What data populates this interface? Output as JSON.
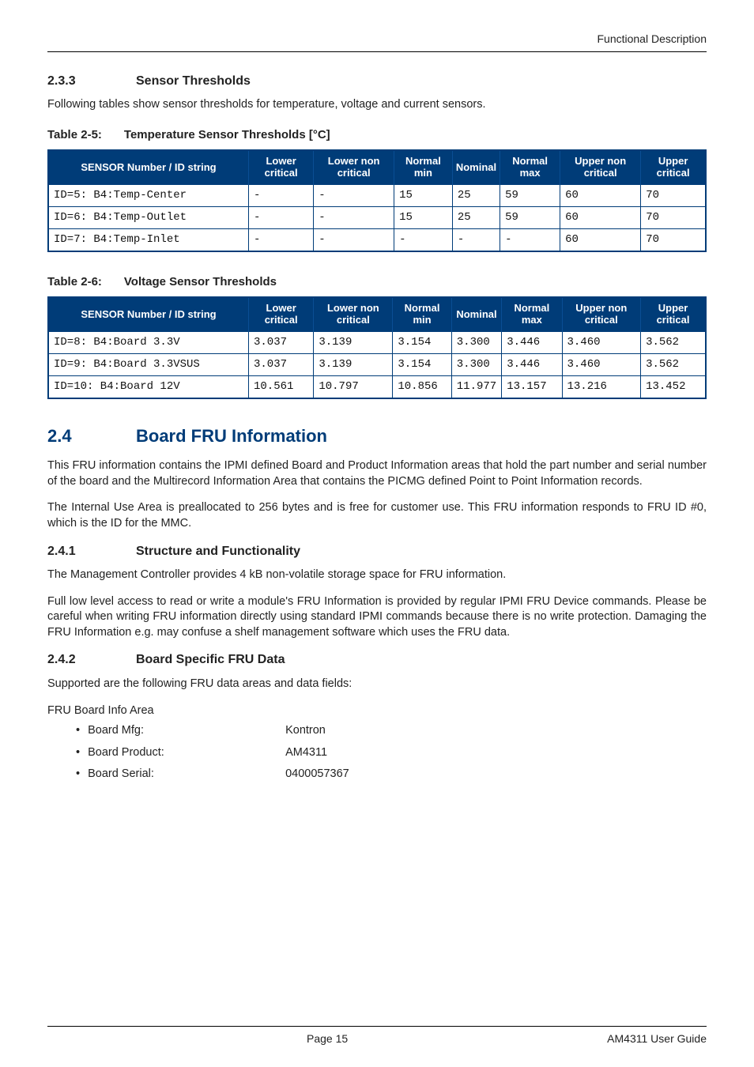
{
  "header": {
    "right": "Functional Description"
  },
  "sections": {
    "s233": {
      "num": "2.3.3",
      "title": "Sensor Thresholds"
    },
    "s233_intro": "Following tables show sensor thresholds for temperature, voltage and current sensors.",
    "tbl25_caption_num": "Table 2-5:",
    "tbl25_caption_title": "Temperature Sensor Thresholds [°C]",
    "tbl26_caption_num": "Table 2-6:",
    "tbl26_caption_title": "Voltage Sensor Thresholds",
    "s24": {
      "num": "2.4",
      "title": "Board FRU Information"
    },
    "s24_p1": "This FRU information contains the IPMI defined Board and Product Information areas that hold the part number and serial number of the board and the Multirecord Information Area that contains the PICMG defined Point to Point Information records.",
    "s24_p2": "The Internal Use Area is preallocated to 256 bytes and is free for customer use. This FRU information responds to FRU ID #0, which is the ID for the MMC.",
    "s241": {
      "num": "2.4.1",
      "title": "Structure and Functionality"
    },
    "s241_p1": "The Management Controller provides 4 kB non-volatile storage space for FRU information.",
    "s241_p2": "Full low level access to read or write a module's FRU Information is provided by regular IPMI FRU Device commands. Please be careful when writing FRU information directly using standard IPMI commands because there is no write protection. Damaging the FRU Information e.g. may confuse a shelf management software which uses the FRU data.",
    "s242": {
      "num": "2.4.2",
      "title": "Board Specific FRU Data"
    },
    "s242_p1": "Supported are the following FRU data areas and data fields:",
    "s242_p2": "FRU Board Info Area"
  },
  "table_columns": [
    "SENSOR Number / ID string",
    "Lower critical",
    "Lower non criti­cal",
    "Normal min",
    "Nominal",
    "Normal max",
    "Upper non critical",
    "Upper critical"
  ],
  "table25": {
    "rows": [
      [
        "ID=5: B4:Temp-Center",
        "-",
        "-",
        "15",
        "25",
        "59",
        "60",
        "70"
      ],
      [
        "ID=6: B4:Temp-Outlet",
        "-",
        "-",
        "15",
        "25",
        "59",
        "60",
        "70"
      ],
      [
        "ID=7: B4:Temp-Inlet",
        "-",
        "-",
        "-",
        "-",
        "-",
        "60",
        "70"
      ]
    ]
  },
  "table26": {
    "rows": [
      [
        "ID=8: B4:Board 3.3V",
        "3.037",
        "3.139",
        "3.154",
        "3.300",
        "3.446",
        "3.460",
        "3.562"
      ],
      [
        "ID=9: B4:Board 3.3VSUS",
        "3.037",
        "3.139",
        "3.154",
        "3.300",
        "3.446",
        "3.460",
        "3.562"
      ],
      [
        "ID=10: B4:Board 12V",
        "10.561",
        "10.797",
        "10.856",
        "11.977",
        "13.157",
        "13.216",
        "13.452"
      ]
    ]
  },
  "fru_list": [
    {
      "label": "Board Mfg:",
      "value": "Kontron"
    },
    {
      "label": "Board Product:",
      "value": "AM4311"
    },
    {
      "label": "Board Serial:",
      "value": "0400057367"
    }
  ],
  "footer": {
    "center": "Page 15",
    "right": "AM4311 User Guide"
  },
  "style": {
    "accent_color": "#003c78",
    "background_color": "#ffffff"
  }
}
